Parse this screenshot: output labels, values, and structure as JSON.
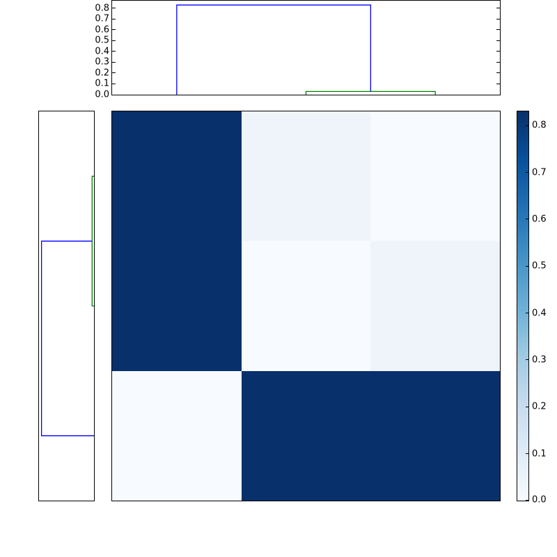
{
  "chart_data": {
    "type": "heatmap",
    "subtype": "hierarchical-clustermap",
    "title": "",
    "matrix": {
      "n_rows": 3,
      "n_cols": 3,
      "values": [
        [
          0.83,
          0.03,
          0.0
        ],
        [
          0.83,
          0.0,
          0.03
        ],
        [
          0.0,
          0.83,
          0.83
        ]
      ]
    },
    "vmin": 0.0,
    "vmax": 0.83,
    "colormap": {
      "name": "Blues",
      "stops": [
        "#f7fbff",
        "#deebf7",
        "#c6dbef",
        "#9ecae1",
        "#6baed6",
        "#4292c6",
        "#2171b5",
        "#08519c",
        "#08306b"
      ]
    },
    "cell_colors": [
      [
        "#08306b",
        "#eff4fb",
        "#f7fbff"
      ],
      [
        "#08306b",
        "#f7fbff",
        "#eff4fb"
      ],
      [
        "#f7fbff",
        "#08306b",
        "#08306b"
      ]
    ],
    "dendrogram_colors": {
      "large_link": "#0000ff",
      "small_link": "#008000"
    },
    "top_dendrogram": {
      "orientation": "top",
      "xlim": [
        0,
        30
      ],
      "ylim": [
        0.0,
        0.87
      ],
      "tick_values": [
        0.0,
        0.1,
        0.2,
        0.3,
        0.4,
        0.5,
        0.6,
        0.7,
        0.8
      ],
      "tick_labels": [
        "0.0",
        "0.1",
        "0.2",
        "0.3",
        "0.4",
        "0.5",
        "0.6",
        "0.7",
        "0.8"
      ],
      "leaf_positions": [
        5,
        15,
        25
      ],
      "links": [
        {
          "color": "#008000",
          "a_pos": 15,
          "b_pos": 25,
          "height": 0.03,
          "a_base": 0.0,
          "b_base": 0.0
        },
        {
          "color": "#0000ff",
          "a_pos": 5,
          "b_pos": 20,
          "height": 0.83,
          "a_base": 0.0,
          "b_base": 0.03
        }
      ]
    },
    "left_dendrogram": {
      "orientation": "left",
      "value_lim": [
        0.0,
        0.87
      ],
      "leaf_positions": [
        5,
        15,
        25
      ],
      "links": [
        {
          "color": "#008000",
          "a_pos": 5,
          "b_pos": 15,
          "height": 0.03,
          "a_base": 0.0,
          "b_base": 0.0
        },
        {
          "color": "#0000ff",
          "a_pos": 10,
          "b_pos": 25,
          "height": 0.83,
          "a_base": 0.03,
          "b_base": 0.0
        }
      ]
    },
    "colorbar": {
      "range": [
        0.0,
        0.83
      ],
      "tick_values": [
        0.8,
        0.7,
        0.6,
        0.5,
        0.4,
        0.3,
        0.2,
        0.1,
        0.0
      ],
      "tick_labels": [
        "0.8",
        "0.7",
        "0.6",
        "0.5",
        "0.4",
        "0.3",
        "0.2",
        "0.1",
        "0.0"
      ]
    }
  }
}
